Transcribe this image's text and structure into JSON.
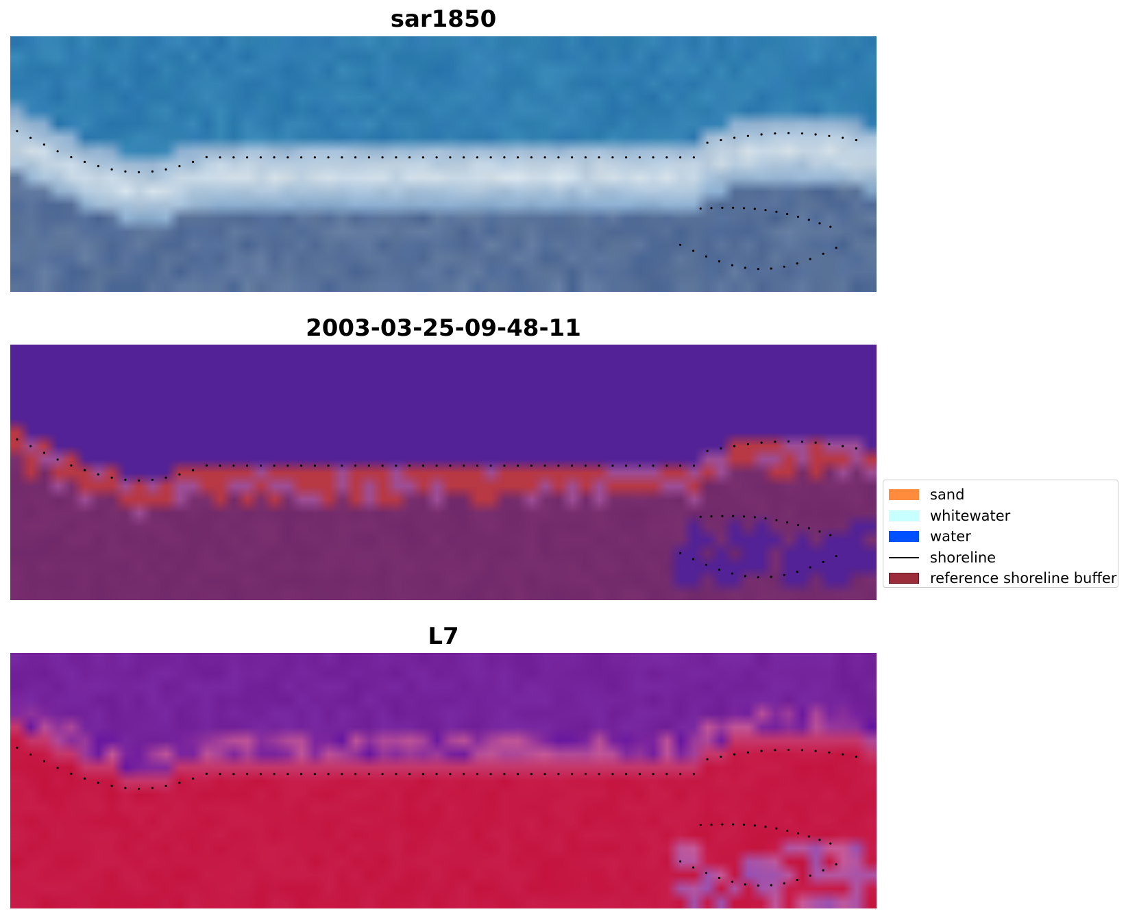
{
  "panels": [
    {
      "id": "rgb",
      "title": "sar1850"
    },
    {
      "id": "classified",
      "title": "2003-03-25-09-48-11"
    },
    {
      "id": "ndwi",
      "title": "L7"
    }
  ],
  "legend": {
    "items": [
      {
        "label": "sand",
        "color": "#ff8c3c",
        "kind": "patch"
      },
      {
        "label": "whitewater",
        "color": "#c8ffff",
        "kind": "patch"
      },
      {
        "label": "water",
        "color": "#0050ff",
        "kind": "patch"
      },
      {
        "label": "shoreline",
        "color": "#000000",
        "kind": "line"
      },
      {
        "label": "reference shoreline buffer",
        "color": "#9b2d3a",
        "kind": "patch"
      }
    ]
  },
  "colors": {
    "classified_water": "#522296",
    "classified_buffer": "#b83844",
    "classified_land": "#70296a",
    "shoreline_points": "#000000"
  }
}
